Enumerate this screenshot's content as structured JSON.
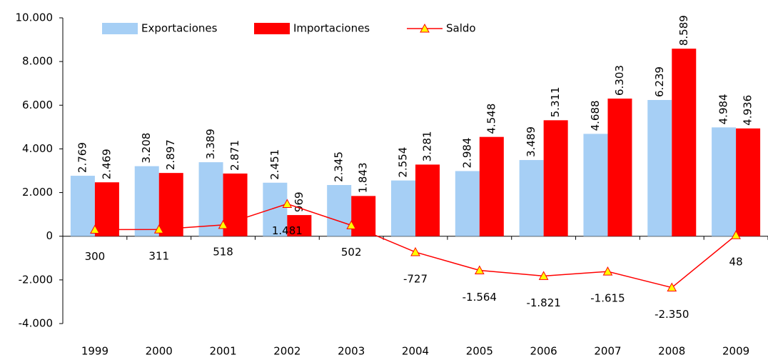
{
  "chart_data": {
    "type": "bar_line",
    "categories": [
      "1999",
      "2000",
      "2001",
      "2002",
      "2003",
      "2004",
      "2005",
      "2006",
      "2007",
      "2008",
      "2009"
    ],
    "series": [
      {
        "name": "Exportaciones",
        "color": "#a6cff5",
        "type": "bar",
        "values": [
          2769,
          3208,
          3389,
          2451,
          2345,
          2554,
          2984,
          3489,
          4688,
          6239,
          4984
        ],
        "value_labels": [
          "2.769",
          "3.208",
          "3.389",
          "2.451",
          "2.345",
          "2.554",
          "2.984",
          "3.489",
          "4.688",
          "6.239",
          "4.984"
        ]
      },
      {
        "name": "Importaciones",
        "color": "#ff0000",
        "type": "bar",
        "values": [
          2469,
          2897,
          2871,
          969,
          1843,
          3281,
          4548,
          5311,
          6303,
          8589,
          4936
        ],
        "value_labels": [
          "2.469",
          "2.897",
          "2.871",
          "969",
          "1.843",
          "3.281",
          "4.548",
          "5.311",
          "6.303",
          "8.589",
          "4.936"
        ]
      },
      {
        "name": "Saldo",
        "color": "#ff0000",
        "marker_color": "#ffff00",
        "type": "line",
        "values": [
          300,
          311,
          518,
          1481,
          502,
          -727,
          -1564,
          -1821,
          -1615,
          -2350,
          48
        ],
        "value_labels": [
          "300",
          "311",
          "518",
          "1.481",
          "502",
          "-727",
          "-1.564",
          "-1.821",
          "-1.615",
          "-2.350",
          "48"
        ]
      }
    ],
    "ylim": [
      -4000,
      10000
    ],
    "yticks": [
      {
        "value": -4000,
        "label": "-4.000"
      },
      {
        "value": -2000,
        "label": "-2.000"
      },
      0,
      {
        "value": 2000,
        "label": "2.000"
      },
      {
        "value": 4000,
        "label": "4.000"
      },
      {
        "value": 6000,
        "label": "6.000"
      },
      {
        "value": 8000,
        "label": "8.000"
      },
      {
        "value": 10000,
        "label": "10.000"
      }
    ],
    "grid": false,
    "legend": "top"
  }
}
